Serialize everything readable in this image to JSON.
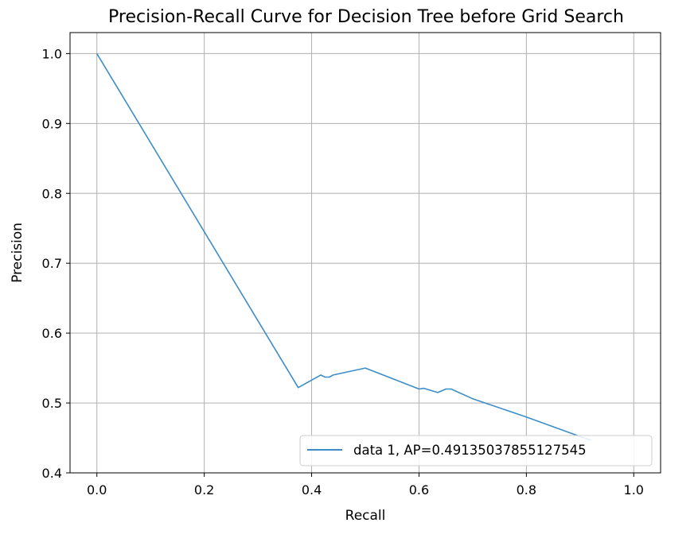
{
  "chart_data": {
    "type": "line",
    "title": "Precision-Recall Curve for Decision Tree before Grid Search",
    "xlabel": "Recall",
    "ylabel": "Precision",
    "xlim": [
      -0.05,
      1.05
    ],
    "ylim": [
      0.4,
      1.03
    ],
    "x_ticks": [
      0.0,
      0.2,
      0.4,
      0.6,
      0.8,
      1.0
    ],
    "x_tick_labels": [
      "0.0",
      "0.2",
      "0.4",
      "0.6",
      "0.8",
      "1.0"
    ],
    "y_ticks": [
      0.4,
      0.5,
      0.6,
      0.7,
      0.8,
      0.9,
      1.0
    ],
    "y_tick_labels": [
      "0.4",
      "0.5",
      "0.6",
      "0.7",
      "0.8",
      "0.9",
      "1.0"
    ],
    "grid": true,
    "legend_position": "lower-right",
    "series": [
      {
        "name": "data 1, AP=0.49135037855127545",
        "color": "#3c8ec8",
        "x": [
          0.0,
          0.375,
          0.417,
          0.425,
          0.433,
          0.44,
          0.5,
          0.6,
          0.609,
          0.635,
          0.65,
          0.66,
          0.7,
          0.8,
          0.9,
          0.92
        ],
        "y": [
          1.0,
          0.522,
          0.54,
          0.537,
          0.537,
          0.54,
          0.55,
          0.52,
          0.521,
          0.515,
          0.52,
          0.52,
          0.506,
          0.48,
          0.452,
          0.447
        ]
      }
    ]
  }
}
